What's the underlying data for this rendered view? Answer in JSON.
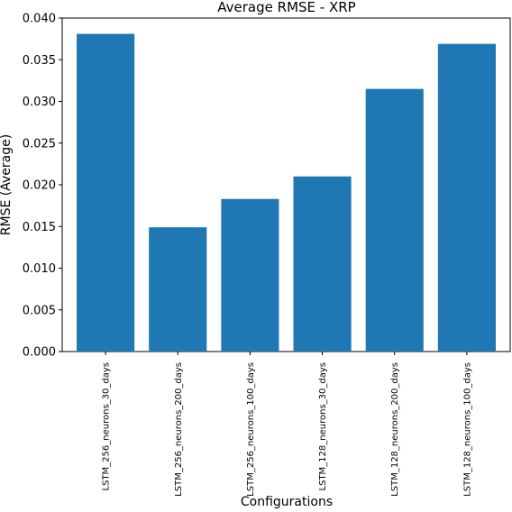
{
  "chart_data": {
    "type": "bar",
    "title": "Average RMSE - XRP",
    "xlabel": "Configurations",
    "ylabel": "RMSE (Average)",
    "categories": [
      "LSTM_256_neurons_30_days",
      "LSTM_256_neurons_200_days",
      "LSTM_256_neurons_100_days",
      "LSTM_128_neurons_30_days",
      "LSTM_128_neurons_200_days",
      "LSTM_128_neurons_100_days"
    ],
    "values": [
      0.0381,
      0.0149,
      0.0183,
      0.021,
      0.0315,
      0.0369
    ],
    "ylim": [
      0,
      0.04
    ],
    "yticks": [
      "0.000",
      "0.005",
      "0.010",
      "0.015",
      "0.020",
      "0.025",
      "0.030",
      "0.035",
      "0.040"
    ],
    "ytick_values": [
      0,
      0.005,
      0.01,
      0.015,
      0.02,
      0.025,
      0.03,
      0.035,
      0.04
    ],
    "grid": false,
    "colors": {
      "bar": "#1f77b4",
      "axis": "#000000",
      "background": "#ffffff"
    }
  }
}
